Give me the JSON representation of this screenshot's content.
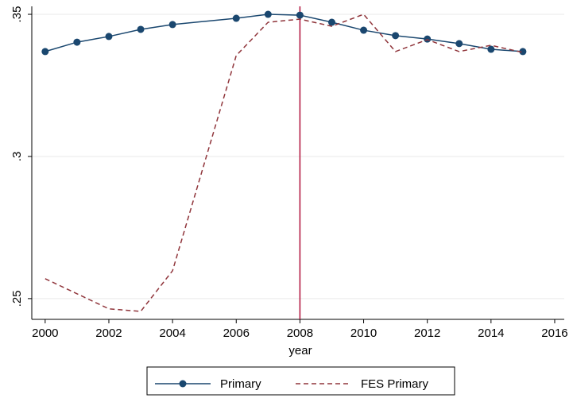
{
  "chart_data": {
    "type": "line",
    "x": [
      2000,
      2001,
      2002,
      2003,
      2004,
      2006,
      2007,
      2008,
      2009,
      2010,
      2011,
      2012,
      2013,
      2014,
      2015
    ],
    "series": [
      {
        "name": "Primary",
        "color": "#1a476f",
        "markers": true,
        "dash": false,
        "values": [
          0.3369,
          0.3402,
          0.3422,
          0.3447,
          0.3464,
          0.3486,
          0.35,
          0.3497,
          0.3472,
          0.3444,
          0.3425,
          0.3413,
          0.3397,
          0.3377,
          0.3369
        ]
      },
      {
        "name": "FES Primary",
        "color": "#90353b",
        "markers": false,
        "dash": true,
        "values": [
          0.257,
          0.2517,
          0.2464,
          0.2455,
          0.2598,
          0.3355,
          0.3472,
          0.3483,
          0.3458,
          0.35,
          0.3369,
          0.3411,
          0.3369,
          0.3391,
          0.3366
        ]
      }
    ],
    "xlabel": "year",
    "xlim": [
      1999.58,
      2016.3
    ],
    "xticks": [
      2000,
      2002,
      2004,
      2006,
      2008,
      2010,
      2012,
      2014,
      2016
    ],
    "ylim": [
      0.2427,
      0.3528
    ],
    "yticks": [
      {
        "value": 0.25,
        "label": ".25"
      },
      {
        "value": 0.3,
        "label": ".3"
      },
      {
        "value": 0.35,
        "label": ".35"
      }
    ],
    "xline": {
      "value": 2008,
      "color": "#b0103a"
    },
    "grid": true,
    "legend": "bottom"
  }
}
